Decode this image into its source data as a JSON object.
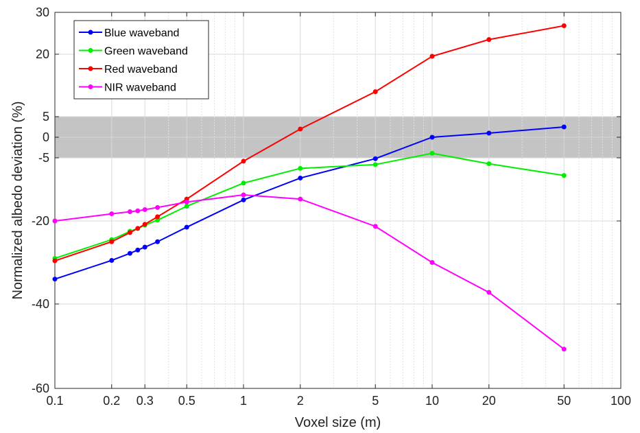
{
  "chart_data": {
    "type": "line",
    "xlabel": "Voxel size (m)",
    "ylabel": "Normalized albedo deviation (%)",
    "x_scale": "log",
    "xlim": [
      0.1,
      100
    ],
    "ylim": [
      -60,
      30
    ],
    "x_ticks": [
      0.1,
      0.2,
      0.3,
      0.5,
      1,
      2,
      5,
      10,
      20,
      50,
      100
    ],
    "x_tick_labels": [
      "0.1",
      "0.2",
      "0.3",
      "0.5",
      "1",
      "2",
      "5",
      "10",
      "20",
      "50",
      "100"
    ],
    "y_ticks": [
      -60,
      -40,
      -20,
      -5,
      0,
      5,
      20,
      30
    ],
    "y_tick_labels": [
      "-60",
      "-40",
      "-20",
      "-5",
      "0",
      "5",
      "20",
      "30"
    ],
    "grid": true,
    "shaded_band": {
      "y_from": -5,
      "y_to": 5,
      "color": "#c4c4c4"
    },
    "legend_position": "top-left",
    "x": [
      0.1,
      0.2,
      0.25,
      0.275,
      0.3,
      0.35,
      0.5,
      1,
      2,
      5,
      10,
      20,
      50
    ],
    "series": [
      {
        "name": "Blue waveband",
        "color": "#0000ff",
        "values": [
          -34,
          -29.5,
          -27.8,
          -27,
          -26.3,
          -25,
          -21.5,
          -15,
          -9.8,
          -5.2,
          0,
          1,
          2.5
        ]
      },
      {
        "name": "Green waveband",
        "color": "#00ee00",
        "values": [
          -29,
          -24.5,
          -22.5,
          -21.8,
          -21,
          -19.8,
          -16.5,
          -11,
          -7.5,
          -6.6,
          -3.9,
          -6.4,
          -9.2
        ]
      },
      {
        "name": "Red waveband",
        "color": "#ff0000",
        "values": [
          -29.6,
          -25,
          -22.8,
          -21.8,
          -20.8,
          -19,
          -14.8,
          -5.8,
          2,
          11,
          19.5,
          23.5,
          26.8
        ]
      },
      {
        "name": "NIR waveband",
        "color": "#ff00ff",
        "values": [
          -20,
          -18.3,
          -17.8,
          -17.6,
          -17.3,
          -16.8,
          -15.5,
          -13.8,
          -14.8,
          -21.3,
          -30,
          -37.2,
          -50.7
        ]
      }
    ]
  }
}
